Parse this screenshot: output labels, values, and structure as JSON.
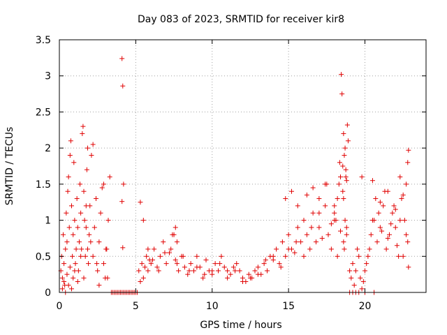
{
  "chart_data": {
    "type": "scatter",
    "title": "Day 083 of 2023, SRMTID for receiver kir8",
    "xlabel": "GPS time / hours",
    "ylabel": "SRMTID / TECUs",
    "xlim": [
      0,
      24
    ],
    "ylim": [
      0,
      3.5
    ],
    "xticks": [
      0,
      5,
      10,
      15,
      20
    ],
    "xtick_labels": [
      "0",
      "5",
      "10",
      "15",
      "20"
    ],
    "yticks": [
      0,
      0.5,
      1,
      1.5,
      2,
      2.5,
      3,
      3.5
    ],
    "ytick_labels": [
      "0",
      "0.5",
      "1",
      "1.5",
      "2",
      "2.5",
      "3",
      "3.5"
    ],
    "grid": true,
    "marker": "+",
    "marker_color": "#e00000",
    "series": [
      {
        "name": "SRMTID",
        "x": [
          0.1,
          0.15,
          0.2,
          0.25,
          0.3,
          0.35,
          0.4,
          0.45,
          0.5,
          0.55,
          0.6,
          0.65,
          0.7,
          0.75,
          0.8,
          0.85,
          0.9,
          0.95,
          1.0,
          1.05,
          1.1,
          1.15,
          1.2,
          1.25,
          1.3,
          1.35,
          1.4,
          1.45,
          1.5,
          1.55,
          1.6,
          1.65,
          1.7,
          1.75,
          1.8,
          1.85,
          1.9,
          1.95,
          2.0,
          2.05,
          2.1,
          2.2,
          2.3,
          2.4,
          2.5,
          2.6,
          2.7,
          2.8,
          2.9,
          3.0,
          3.1,
          3.2,
          3.3,
          0.2,
          0.3,
          0.4,
          0.5,
          0.6,
          0.7,
          0.8,
          0.9,
          1.0,
          1.2,
          1.4,
          1.6,
          1.75,
          1.85,
          2.2,
          2.45,
          2.6,
          2.9,
          3.05,
          3.15,
          3.4,
          3.5,
          3.6,
          3.7,
          3.8,
          3.9,
          4.0,
          4.1,
          4.2,
          4.3,
          4.4,
          4.5,
          4.6,
          4.7,
          4.8,
          4.9,
          5.0,
          5.1,
          4.1,
          4.15,
          4.2,
          4.1,
          4.15,
          5.2,
          5.3,
          5.4,
          5.5,
          5.6,
          5.7,
          5.8,
          5.9,
          6.0,
          6.2,
          6.4,
          6.6,
          6.8,
          7.0,
          7.2,
          7.4,
          7.6,
          7.8,
          8.0,
          8.2,
          8.4,
          8.6,
          8.8,
          9.0,
          9.2,
          9.4,
          9.6,
          9.8,
          10.0,
          10.2,
          10.4,
          10.6,
          10.8,
          11.0,
          11.2,
          11.4,
          11.6,
          11.8,
          12.0,
          12.2,
          12.4,
          12.6,
          12.8,
          13.0,
          13.2,
          13.4,
          13.6,
          13.8,
          14.0,
          14.2,
          14.4,
          14.6,
          14.8,
          15.0,
          15.2,
          15.4,
          15.6,
          15.8,
          16.0,
          16.2,
          16.4,
          16.6,
          16.8,
          17.0,
          17.2,
          17.4,
          17.6,
          17.8,
          18.0,
          18.2,
          18.4,
          18.6,
          18.8,
          19.0,
          5.3,
          5.5,
          5.8,
          6.1,
          6.5,
          6.9,
          7.3,
          7.7,
          8.1,
          8.5,
          9.0,
          9.5,
          10.0,
          10.5,
          11.0,
          11.5,
          12.0,
          12.5,
          13.0,
          13.5,
          14.0,
          14.5,
          15.0,
          15.5,
          16.0,
          16.5,
          17.0,
          17.5,
          18.0,
          7.5,
          7.6,
          7.7,
          14.8,
          15.2,
          15.6,
          16.2,
          16.6,
          17.0,
          17.4,
          17.8,
          18.0,
          18.1,
          18.2,
          18.3,
          18.35,
          18.4,
          18.45,
          18.5,
          18.55,
          18.6,
          18.65,
          18.7,
          18.75,
          18.8,
          18.85,
          18.9,
          18.55,
          18.6,
          18.75,
          18.8,
          18.7,
          18.65,
          19.1,
          19.2,
          19.3,
          19.4,
          19.5,
          19.6,
          19.7,
          19.8,
          19.9,
          20.0,
          20.2,
          20.4,
          20.6,
          20.8,
          21.0,
          21.2,
          21.4,
          21.6,
          21.8,
          22.0,
          22.2,
          22.4,
          22.6,
          22.8,
          20.1,
          20.3,
          20.5,
          20.7,
          20.9,
          21.1,
          21.3,
          21.5,
          21.7,
          21.9,
          22.1,
          22.3,
          22.5,
          22.7,
          22.85,
          20.5,
          21.0,
          21.5,
          22.0,
          22.3,
          22.5,
          22.7,
          22.8,
          22.85,
          19.8,
          19.0,
          19.2,
          19.4,
          19.6,
          20.0,
          20.6
        ],
        "y": [
          0.3,
          0.5,
          0.2,
          0.8,
          0.4,
          0.1,
          0.6,
          1.1,
          0.7,
          1.4,
          1.6,
          0.9,
          1.9,
          2.1,
          1.2,
          0.5,
          0.8,
          1.8,
          1.0,
          0.4,
          0.6,
          1.3,
          0.9,
          0.3,
          0.7,
          1.5,
          1.1,
          0.6,
          2.2,
          2.3,
          1.4,
          1.0,
          0.5,
          0.9,
          1.7,
          0.6,
          0.4,
          0.8,
          1.2,
          0.7,
          1.9,
          0.5,
          0.9,
          1.3,
          0.3,
          0.7,
          1.1,
          1.45,
          0.4,
          0.2,
          0.6,
          1.0,
          1.6,
          0.05,
          0.15,
          0.0,
          0.25,
          0.1,
          0.35,
          0.05,
          0.2,
          0.3,
          0.15,
          0.5,
          0.2,
          1.2,
          2.0,
          2.05,
          0.4,
          0.1,
          1.5,
          0.6,
          0.2,
          0.0,
          0.0,
          0.0,
          0.0,
          0.0,
          0.0,
          0.0,
          0.0,
          0.0,
          0.0,
          0.0,
          0.0,
          0.0,
          0.0,
          0.0,
          0.0,
          0.0,
          0.0,
          3.24,
          2.86,
          1.5,
          1.26,
          0.62,
          0.3,
          0.15,
          0.4,
          0.2,
          0.35,
          0.5,
          0.3,
          0.45,
          0.4,
          0.6,
          0.35,
          0.5,
          0.7,
          0.4,
          0.55,
          0.8,
          0.45,
          0.3,
          0.5,
          0.35,
          0.25,
          0.4,
          0.3,
          0.5,
          0.35,
          0.2,
          0.45,
          0.3,
          0.25,
          0.4,
          0.3,
          0.5,
          0.35,
          0.3,
          0.25,
          0.35,
          0.4,
          0.3,
          0.2,
          0.15,
          0.25,
          0.2,
          0.3,
          0.35,
          0.25,
          0.4,
          0.3,
          0.5,
          0.45,
          0.6,
          0.4,
          0.7,
          0.5,
          0.8,
          0.6,
          0.55,
          0.9,
          0.7,
          1.0,
          0.8,
          0.6,
          1.1,
          0.7,
          0.9,
          0.75,
          1.2,
          0.8,
          0.6,
          1.0,
          0.5,
          0.85,
          0.7,
          0.9,
          0.3,
          1.25,
          1.0,
          0.6,
          0.45,
          0.3,
          0.55,
          0.6,
          0.4,
          0.5,
          0.3,
          0.35,
          0.25,
          0.3,
          0.4,
          0.2,
          0.3,
          0.15,
          0.2,
          0.25,
          0.45,
          0.5,
          0.35,
          0.6,
          0.7,
          0.5,
          0.9,
          1.3,
          1.5,
          1.1,
          0.8,
          0.9,
          0.7,
          1.3,
          1.4,
          1.2,
          1.35,
          1.45,
          1.1,
          1.5,
          0.95,
          1.2,
          1.0,
          1.3,
          1.5,
          1.8,
          1.6,
          3.02,
          2.75,
          1.4,
          2.2,
          1.9,
          2.0,
          1.7,
          1.55,
          2.32,
          2.1,
          1.75,
          1.3,
          1.6,
          0.8,
          1.0,
          0.6,
          0.2,
          0.4,
          0.1,
          0.3,
          0.6,
          0.5,
          0.2,
          0.05,
          0.15,
          0.3,
          0.5,
          0.8,
          1.0,
          0.7,
          0.9,
          1.2,
          0.6,
          0.8,
          1.1,
          0.9,
          0.5,
          1.3,
          1.0,
          0.7,
          0.4,
          0.6,
          1.0,
          1.3,
          1.1,
          0.85,
          1.4,
          0.75,
          0.95,
          1.2,
          0.65,
          1.0,
          0.5,
          0.8,
          0.35,
          1.55,
          1.25,
          1.4,
          1.15,
          1.6,
          1.35,
          1.5,
          1.8,
          1.97,
          1.6,
          0.0,
          0.0,
          0.0,
          0.0,
          0.0,
          0.0
        ]
      }
    ]
  }
}
